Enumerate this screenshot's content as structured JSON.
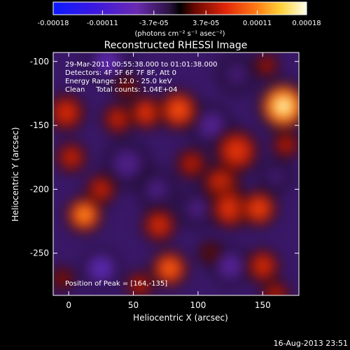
{
  "colorbar": {
    "ticks": [
      "-0.00018",
      "-0.00011",
      "-3.7e-05",
      "3.7e-05",
      "0.00011",
      "0.00018"
    ],
    "unit_label": "(photons cm⁻² s⁻¹ asec⁻²)"
  },
  "chart_data": {
    "type": "heatmap",
    "title": "Reconstructed RHESSI Image",
    "xlabel": "Heliocentric X (arcsec)",
    "ylabel": "Heliocentric Y (arcsec)",
    "xlim": [
      -12,
      178
    ],
    "ylim": [
      -283,
      -93
    ],
    "x_ticks": [
      0,
      50,
      100,
      150
    ],
    "y_ticks": [
      -100,
      -150,
      -200,
      -250
    ],
    "value_range": [
      -0.00018,
      0.00018
    ],
    "annotations": [
      "29-Mar-2011 00:55:38.000 to 01:01:38.000",
      "Detectors: 4F 5F 6F 7F 8F, Att 0",
      "Energy Range: 12.0 - 25.0 keV",
      "Clean     Total counts: 1.04E+04"
    ],
    "peak_text": "Position of Peak = [164,-135]",
    "peak": [
      164,
      -135
    ],
    "sources": [
      {
        "x": 166,
        "y": -135,
        "v": 0.00018,
        "r": 16
      },
      {
        "x": 153,
        "y": -103,
        "v": 5e-05,
        "r": 8
      },
      {
        "x": 168,
        "y": -165,
        "v": 6e-05,
        "r": 9
      },
      {
        "x": 130,
        "y": -170,
        "v": 9e-05,
        "r": 14
      },
      {
        "x": 118,
        "y": -195,
        "v": 8e-05,
        "r": 12
      },
      {
        "x": 125,
        "y": -215,
        "v": 9e-05,
        "r": 13
      },
      {
        "x": 147,
        "y": -215,
        "v": 0.0001,
        "r": 12
      },
      {
        "x": 95,
        "y": -180,
        "v": 6e-05,
        "r": 10
      },
      {
        "x": 85,
        "y": -138,
        "v": 0.00011,
        "r": 13
      },
      {
        "x": 60,
        "y": -140,
        "v": 9e-05,
        "r": 11
      },
      {
        "x": 38,
        "y": -145,
        "v": 7e-05,
        "r": 10
      },
      {
        "x": 45,
        "y": -120,
        "v": 4e-05,
        "r": 8
      },
      {
        "x": -2,
        "y": -140,
        "v": 8e-05,
        "r": 12
      },
      {
        "x": 2,
        "y": -175,
        "v": 7e-05,
        "r": 10
      },
      {
        "x": 12,
        "y": -220,
        "v": 0.00014,
        "r": 12
      },
      {
        "x": 25,
        "y": -200,
        "v": 7e-05,
        "r": 10
      },
      {
        "x": 70,
        "y": -228,
        "v": 8e-05,
        "r": 11
      },
      {
        "x": 78,
        "y": -262,
        "v": 0.00012,
        "r": 12
      },
      {
        "x": 55,
        "y": -275,
        "v": 6e-05,
        "r": 9
      },
      {
        "x": 150,
        "y": -260,
        "v": 8e-05,
        "r": 11
      },
      {
        "x": 160,
        "y": -282,
        "v": 6e-05,
        "r": 9
      },
      {
        "x": -5,
        "y": -270,
        "v": 4e-05,
        "r": 8
      },
      {
        "x": 110,
        "y": -250,
        "v": 3e-05,
        "r": 8
      },
      {
        "x": 30,
        "y": -100,
        "v": -0.00012,
        "r": 13
      },
      {
        "x": 25,
        "y": -262,
        "v": -0.00013,
        "r": 12
      },
      {
        "x": 110,
        "y": -150,
        "v": -8e-05,
        "r": 13
      },
      {
        "x": 100,
        "y": -215,
        "v": -6e-05,
        "r": 12
      },
      {
        "x": 45,
        "y": -180,
        "v": -7e-05,
        "r": 14
      },
      {
        "x": 68,
        "y": -200,
        "v": -6e-05,
        "r": 12
      },
      {
        "x": 125,
        "y": -260,
        "v": -9e-05,
        "r": 12
      },
      {
        "x": 160,
        "y": -190,
        "v": -5e-05,
        "r": 10
      },
      {
        "x": 130,
        "y": -110,
        "v": -5e-05,
        "r": 12
      }
    ]
  },
  "footer": {
    "date": "16-Aug-2013 23:51"
  }
}
